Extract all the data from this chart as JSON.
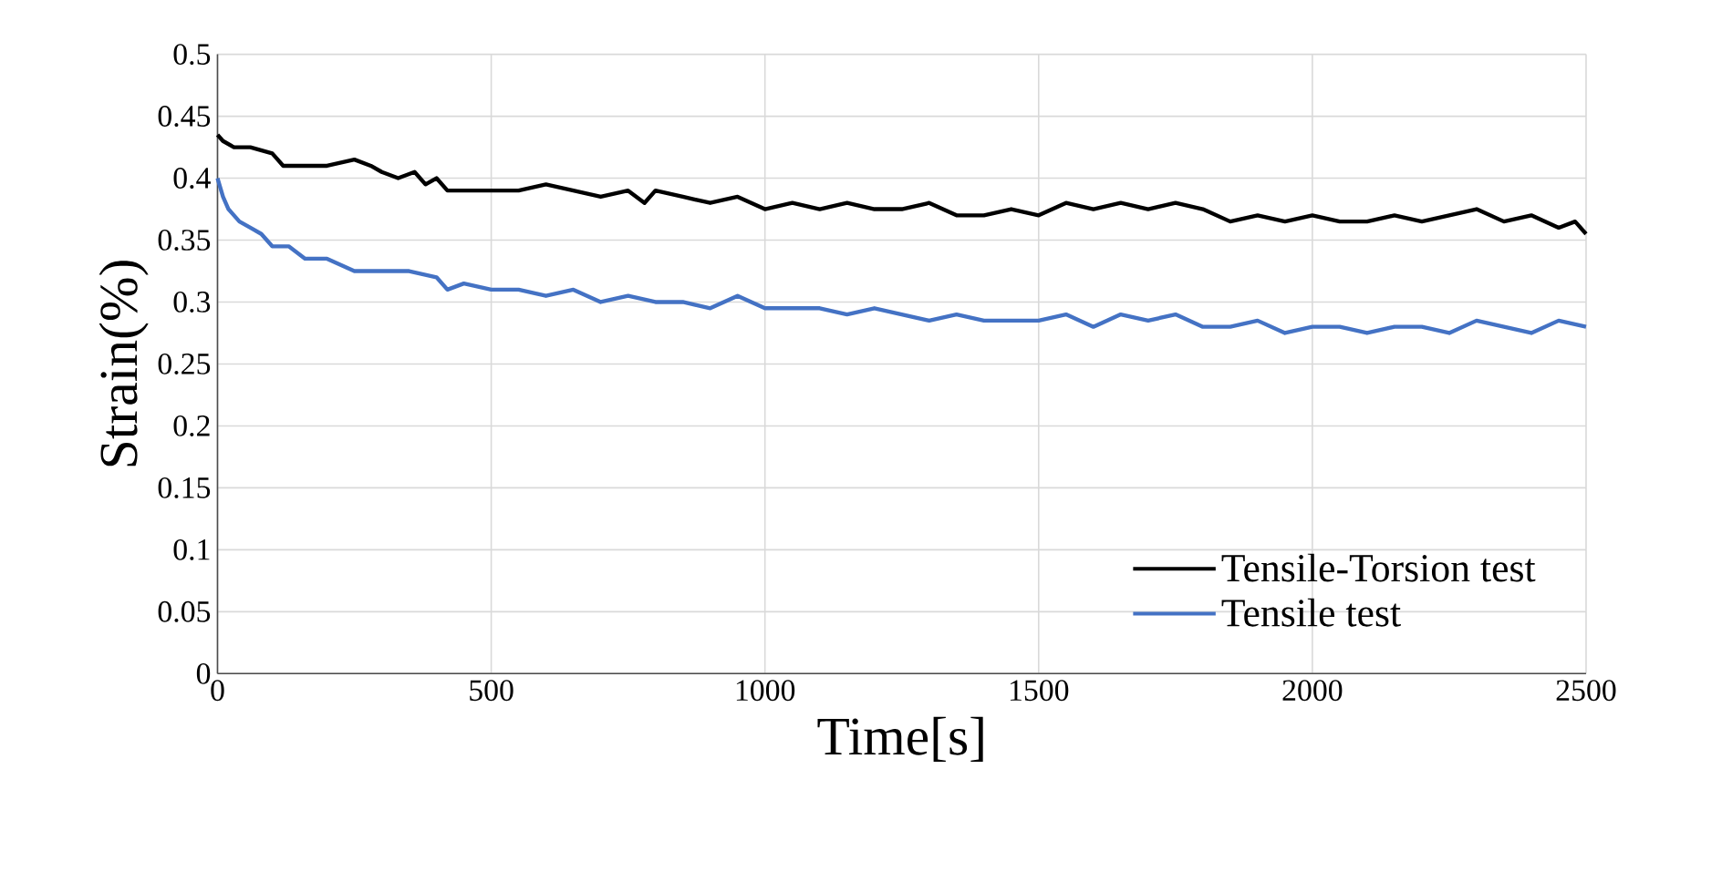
{
  "chart_data": {
    "type": "line",
    "xlabel": "Time[s]",
    "ylabel": "Strain(%)",
    "xlim": [
      0,
      2500
    ],
    "ylim": [
      0,
      0.5
    ],
    "xticks": [
      0,
      500,
      1000,
      1500,
      2000,
      2500
    ],
    "yticks": [
      0,
      0.05,
      0.1,
      0.15,
      0.2,
      0.25,
      0.3,
      0.35,
      0.4,
      0.45,
      0.5
    ],
    "grid": true,
    "legend": "bottom right",
    "marker": "none",
    "line_style": "solid",
    "series": [
      {
        "name": "Tensile-Torsion test",
        "color": "#000000",
        "x": [
          0,
          10,
          30,
          60,
          100,
          120,
          150,
          200,
          250,
          280,
          300,
          330,
          360,
          380,
          400,
          420,
          450,
          500,
          550,
          600,
          650,
          700,
          750,
          780,
          800,
          850,
          900,
          950,
          1000,
          1050,
          1100,
          1150,
          1200,
          1250,
          1300,
          1350,
          1400,
          1450,
          1500,
          1550,
          1600,
          1650,
          1700,
          1750,
          1800,
          1850,
          1900,
          1950,
          2000,
          2050,
          2100,
          2150,
          2200,
          2250,
          2300,
          2350,
          2400,
          2450,
          2480,
          2500
        ],
        "values": [
          0.435,
          0.43,
          0.425,
          0.425,
          0.42,
          0.41,
          0.41,
          0.41,
          0.415,
          0.41,
          0.405,
          0.4,
          0.405,
          0.395,
          0.4,
          0.39,
          0.39,
          0.39,
          0.39,
          0.395,
          0.39,
          0.385,
          0.39,
          0.38,
          0.39,
          0.385,
          0.38,
          0.385,
          0.375,
          0.38,
          0.375,
          0.38,
          0.375,
          0.375,
          0.38,
          0.37,
          0.37,
          0.375,
          0.37,
          0.38,
          0.375,
          0.38,
          0.375,
          0.38,
          0.375,
          0.365,
          0.37,
          0.365,
          0.37,
          0.365,
          0.365,
          0.37,
          0.365,
          0.37,
          0.375,
          0.365,
          0.37,
          0.36,
          0.365,
          0.355
        ]
      },
      {
        "name": "Tensile test",
        "color": "#4472c4",
        "x": [
          0,
          10,
          20,
          40,
          60,
          80,
          100,
          130,
          160,
          200,
          250,
          300,
          350,
          400,
          420,
          450,
          500,
          550,
          600,
          650,
          700,
          750,
          800,
          850,
          900,
          950,
          1000,
          1050,
          1100,
          1150,
          1200,
          1250,
          1300,
          1350,
          1400,
          1450,
          1500,
          1550,
          1600,
          1650,
          1700,
          1750,
          1800,
          1850,
          1900,
          1950,
          2000,
          2050,
          2100,
          2150,
          2200,
          2250,
          2300,
          2350,
          2400,
          2450,
          2500
        ],
        "values": [
          0.4,
          0.385,
          0.375,
          0.365,
          0.36,
          0.355,
          0.345,
          0.345,
          0.335,
          0.335,
          0.325,
          0.325,
          0.325,
          0.32,
          0.31,
          0.315,
          0.31,
          0.31,
          0.305,
          0.31,
          0.3,
          0.305,
          0.3,
          0.3,
          0.295,
          0.305,
          0.295,
          0.295,
          0.295,
          0.29,
          0.295,
          0.29,
          0.285,
          0.29,
          0.285,
          0.285,
          0.285,
          0.29,
          0.28,
          0.29,
          0.285,
          0.29,
          0.28,
          0.28,
          0.285,
          0.275,
          0.28,
          0.28,
          0.275,
          0.28,
          0.28,
          0.275,
          0.285,
          0.28,
          0.275,
          0.285,
          0.28
        ]
      }
    ]
  }
}
